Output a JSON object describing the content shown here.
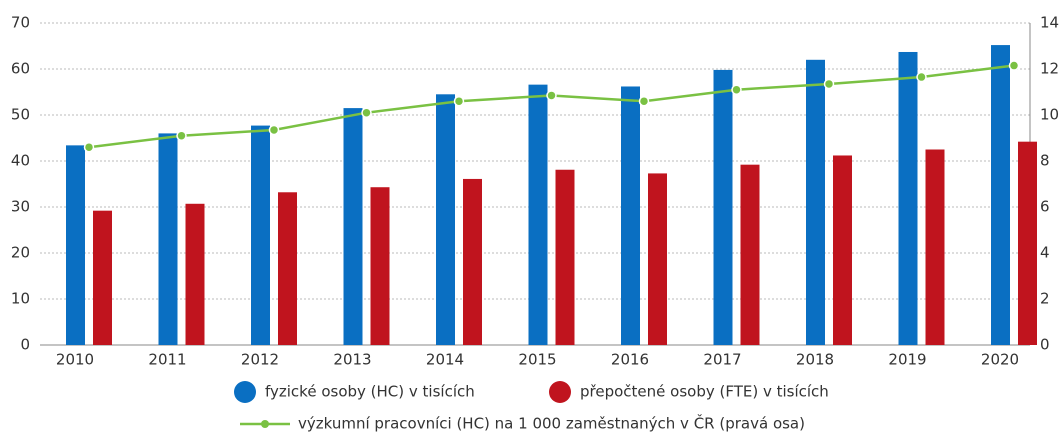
{
  "chart_data": {
    "type": "bar-line",
    "categories": [
      "2010",
      "2011",
      "2012",
      "2013",
      "2014",
      "2015",
      "2016",
      "2017",
      "2018",
      "2019",
      "2020"
    ],
    "series": [
      {
        "name": "fyzické osoby (HC) v tisících",
        "color": "#0a6fc2",
        "values": [
          43.4,
          46.0,
          47.7,
          51.5,
          54.5,
          56.6,
          56.2,
          59.8,
          62.0,
          63.7,
          65.2
        ]
      },
      {
        "name": "přepočtené osoby (FTE) v tisících",
        "color": "#c0141e",
        "values": [
          29.2,
          30.7,
          33.2,
          34.3,
          36.1,
          38.1,
          37.3,
          39.2,
          41.2,
          42.5,
          44.2
        ]
      },
      {
        "name": "výzkumní pracovníci (HC) na 1 000 zaměstnaných v ČR (pravá osa)",
        "color": "#7ac143",
        "axis": "y2",
        "values": [
          8.6,
          9.1,
          9.35,
          10.1,
          10.6,
          10.85,
          10.6,
          11.1,
          11.35,
          11.65,
          12.15
        ]
      }
    ],
    "ylim": [
      0,
      70
    ],
    "yticks": [
      0,
      10,
      20,
      30,
      40,
      50,
      60,
      70
    ],
    "y2lim": [
      0,
      14
    ],
    "y2ticks": [
      0,
      2,
      4,
      6,
      8,
      10,
      12,
      14
    ],
    "grid": true
  }
}
